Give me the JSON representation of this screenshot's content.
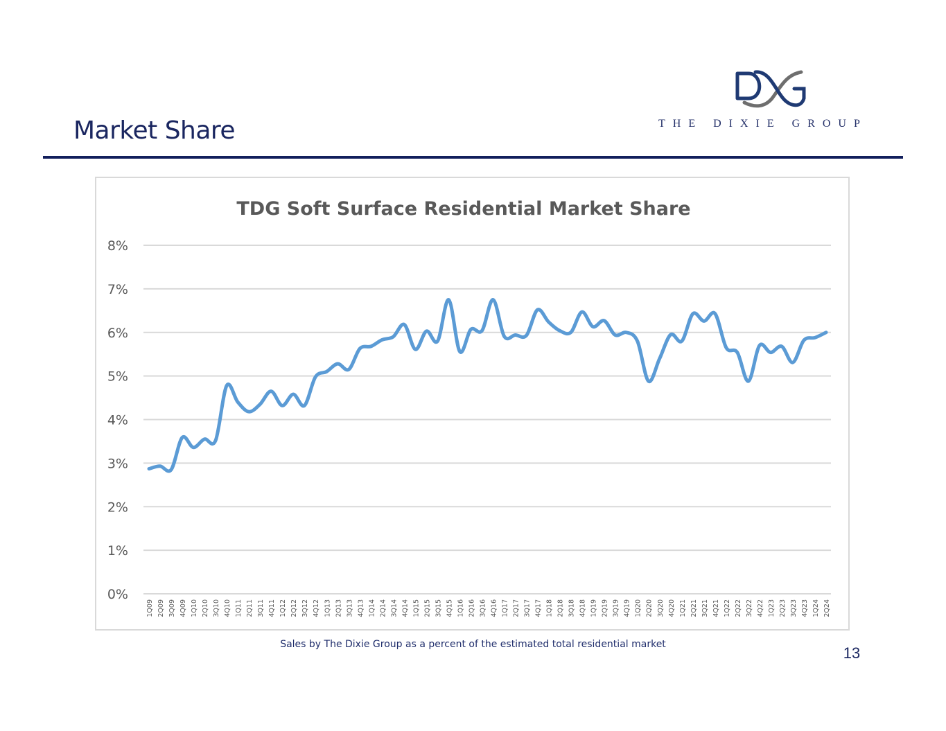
{
  "slide": {
    "title": "Market Share",
    "caption": "Sales by The Dixie Group as a percent of the estimated total residential market",
    "page_number": "13"
  },
  "logo": {
    "text": "THE DIXIE GROUP",
    "colors": {
      "blue": "#1f3a73",
      "gray": "#6e6e6e"
    }
  },
  "colors": {
    "title": "#1a2660",
    "rule": "#121f5c",
    "line": "#5b9bd5",
    "grid": "#d9d9d9",
    "axis_text": "#595959",
    "chart_title": "#595959"
  },
  "chart_data": {
    "type": "line",
    "title": "TDG Soft Surface Residential Market Share",
    "xlabel": "",
    "ylabel": "",
    "ylim": [
      0,
      8
    ],
    "yticks": [
      "0%",
      "1%",
      "2%",
      "3%",
      "4%",
      "5%",
      "6%",
      "7%",
      "8%"
    ],
    "grid": true,
    "legend": "none",
    "categories": [
      "1Q09",
      "2Q09",
      "3Q09",
      "4Q09",
      "1Q10",
      "2Q10",
      "3Q10",
      "4Q10",
      "1Q11",
      "2Q11",
      "3Q11",
      "4Q11",
      "1Q12",
      "2Q12",
      "3Q12",
      "4Q12",
      "1Q13",
      "2Q13",
      "3Q13",
      "4Q13",
      "1Q14",
      "2Q14",
      "3Q14",
      "4Q14",
      "1Q15",
      "2Q15",
      "3Q15",
      "4Q15",
      "1Q16",
      "2Q16",
      "3Q16",
      "4Q16",
      "1Q17",
      "2Q17",
      "3Q17",
      "4Q17",
      "1Q18",
      "2Q18",
      "3Q18",
      "4Q18",
      "1Q19",
      "2Q19",
      "3Q19",
      "4Q19",
      "1Q20",
      "2Q20",
      "3Q20",
      "4Q20",
      "1Q21",
      "2Q21",
      "3Q21",
      "4Q21",
      "1Q22",
      "2Q22",
      "3Q22",
      "4Q22",
      "1Q23",
      "2Q23",
      "3Q23",
      "4Q23",
      "1Q24",
      "2Q24"
    ],
    "series": [
      {
        "values": [
          2.87,
          2.93,
          2.85,
          3.59,
          3.36,
          3.55,
          3.52,
          4.78,
          4.4,
          4.18,
          4.35,
          4.65,
          4.32,
          4.58,
          4.32,
          4.98,
          5.1,
          5.28,
          5.15,
          5.63,
          5.68,
          5.83,
          5.9,
          6.18,
          5.61,
          6.03,
          5.8,
          6.75,
          5.56,
          6.07,
          6.04,
          6.75,
          5.91,
          5.94,
          5.93,
          6.52,
          6.24,
          6.04,
          6.0,
          6.47,
          6.13,
          6.27,
          5.94,
          6.0,
          5.8,
          4.88,
          5.4,
          5.95,
          5.8,
          6.43,
          6.26,
          6.43,
          5.65,
          5.54,
          4.88,
          5.7,
          5.54,
          5.68,
          5.31,
          5.82,
          5.88,
          6.0
        ]
      }
    ]
  }
}
